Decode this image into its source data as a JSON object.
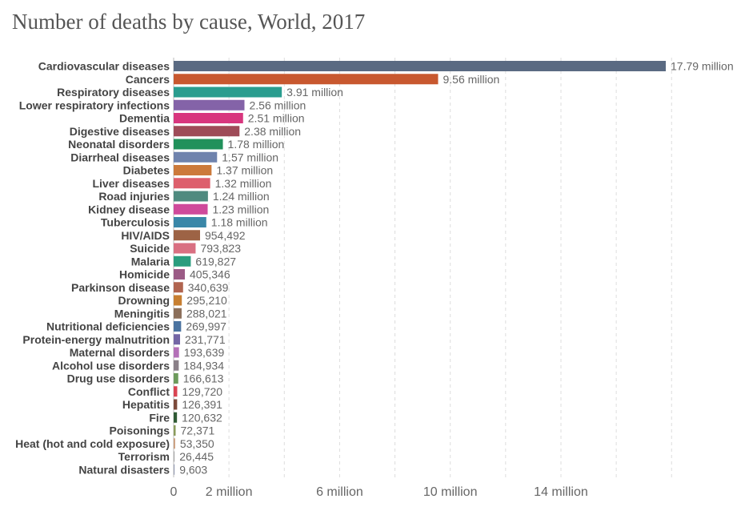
{
  "chart_data": {
    "type": "bar",
    "orientation": "horizontal",
    "title": "Number of deaths by cause, World, 2017",
    "xlabel": "",
    "ylabel": "",
    "xlim": [
      0,
      18000000
    ],
    "grid": true,
    "x_ticks": [
      {
        "value": 0,
        "label": "0"
      },
      {
        "value": 2000000,
        "label": "2 million"
      },
      {
        "value": 6000000,
        "label": "6 million"
      },
      {
        "value": 10000000,
        "label": "10 million"
      },
      {
        "value": 14000000,
        "label": "14 million"
      }
    ],
    "categories": [
      "Cardiovascular diseases",
      "Cancers",
      "Respiratory diseases",
      "Lower respiratory infections",
      "Dementia",
      "Digestive diseases",
      "Neonatal disorders",
      "Diarrheal diseases",
      "Diabetes",
      "Liver diseases",
      "Road injuries",
      "Kidney disease",
      "Tuberculosis",
      "HIV/AIDS",
      "Suicide",
      "Malaria",
      "Homicide",
      "Parkinson disease",
      "Drowning",
      "Meningitis",
      "Nutritional deficiencies",
      "Protein-energy malnutrition",
      "Maternal disorders",
      "Alcohol use disorders",
      "Drug use disorders",
      "Conflict",
      "Hepatitis",
      "Fire",
      "Poisonings",
      "Heat (hot and cold exposure)",
      "Terrorism",
      "Natural disasters"
    ],
    "values": [
      17790000,
      9560000,
      3910000,
      2560000,
      2510000,
      2380000,
      1780000,
      1570000,
      1370000,
      1320000,
      1240000,
      1230000,
      1180000,
      954492,
      793823,
      619827,
      405346,
      340639,
      295210,
      288021,
      269997,
      231771,
      193639,
      184934,
      166613,
      129720,
      126391,
      120632,
      72371,
      53350,
      26445,
      9603
    ],
    "value_labels": [
      "17.79 million",
      "9.56 million",
      "3.91 million",
      "2.56 million",
      "2.51 million",
      "2.38 million",
      "1.78 million",
      "1.57 million",
      "1.37 million",
      "1.32 million",
      "1.24 million",
      "1.23 million",
      "1.18 million",
      "954,492",
      "793,823",
      "619,827",
      "405,346",
      "340,639",
      "295,210",
      "288,021",
      "269,997",
      "231,771",
      "193,639",
      "184,934",
      "166,613",
      "129,720",
      "126,391",
      "120,632",
      "72,371",
      "53,350",
      "26,445",
      "9,603"
    ],
    "colors": [
      "#5a6a82",
      "#c8582f",
      "#2a9d8f",
      "#8463a8",
      "#d8367e",
      "#9e4b58",
      "#21915b",
      "#6f83ad",
      "#cc7a3b",
      "#dd5f6c",
      "#4f8a7f",
      "#cf4a9b",
      "#3a87a8",
      "#9d6345",
      "#d97082",
      "#2a9d7e",
      "#9b5b86",
      "#b0644f",
      "#c77f31",
      "#8b6f5a",
      "#4b73a0",
      "#7466a5",
      "#b471b8",
      "#8a8088",
      "#6d9b5c",
      "#d94452",
      "#7c4a3a",
      "#2f5a34",
      "#8a9b5c",
      "#c99b7a",
      "#aaaaaa",
      "#9aa0b5"
    ]
  }
}
